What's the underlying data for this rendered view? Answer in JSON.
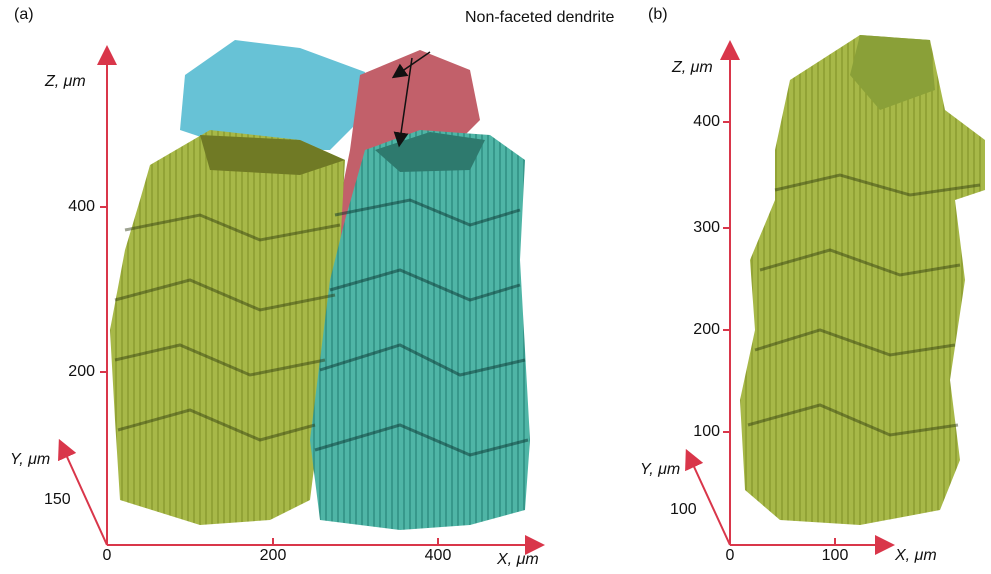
{
  "panels": [
    {
      "label": "(a)",
      "annotation": "Non-faceted dendrite",
      "z_label": "Z, μm",
      "z_ticks": [
        400,
        200
      ],
      "x_label": "X, μm",
      "x_ticks": [
        0,
        200,
        400
      ],
      "y_label": "Y, μm",
      "y_ticks": [
        150
      ]
    },
    {
      "label": "(b)",
      "z_label": "Z, μm",
      "z_ticks": [
        400,
        300,
        200,
        100
      ],
      "x_label": "X, μm",
      "x_ticks": [
        0,
        100
      ],
      "y_label": "Y, μm",
      "y_ticks": [
        100
      ]
    }
  ]
}
